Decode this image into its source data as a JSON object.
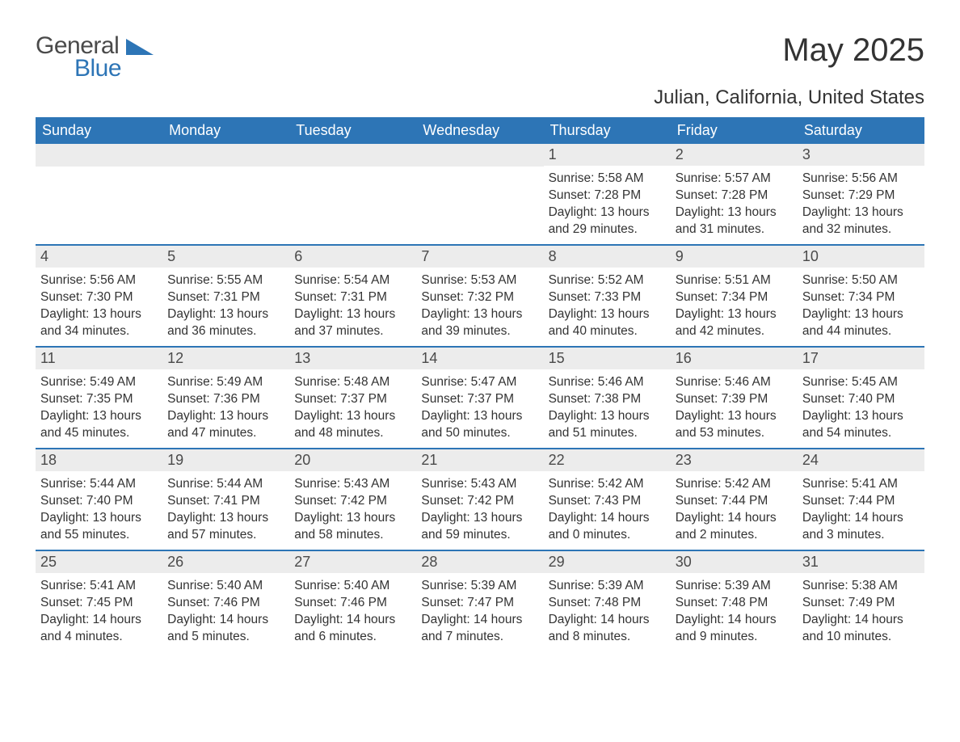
{
  "logo": {
    "word1": "General",
    "word2": "Blue"
  },
  "title": "May 2025",
  "location": "Julian, California, United States",
  "colors": {
    "header_bg": "#2d75b6",
    "header_text": "#ffffff",
    "daynum_bg": "#ececec",
    "body_text": "#333333",
    "logo_gray": "#4a4a4a",
    "logo_blue": "#2d75b6",
    "page_bg": "#ffffff"
  },
  "weekdays": [
    "Sunday",
    "Monday",
    "Tuesday",
    "Wednesday",
    "Thursday",
    "Friday",
    "Saturday"
  ],
  "weeks": [
    [
      null,
      null,
      null,
      null,
      {
        "n": "1",
        "sr": "Sunrise: 5:58 AM",
        "ss": "Sunset: 7:28 PM",
        "dl": "Daylight: 13 hours and 29 minutes."
      },
      {
        "n": "2",
        "sr": "Sunrise: 5:57 AM",
        "ss": "Sunset: 7:28 PM",
        "dl": "Daylight: 13 hours and 31 minutes."
      },
      {
        "n": "3",
        "sr": "Sunrise: 5:56 AM",
        "ss": "Sunset: 7:29 PM",
        "dl": "Daylight: 13 hours and 32 minutes."
      }
    ],
    [
      {
        "n": "4",
        "sr": "Sunrise: 5:56 AM",
        "ss": "Sunset: 7:30 PM",
        "dl": "Daylight: 13 hours and 34 minutes."
      },
      {
        "n": "5",
        "sr": "Sunrise: 5:55 AM",
        "ss": "Sunset: 7:31 PM",
        "dl": "Daylight: 13 hours and 36 minutes."
      },
      {
        "n": "6",
        "sr": "Sunrise: 5:54 AM",
        "ss": "Sunset: 7:31 PM",
        "dl": "Daylight: 13 hours and 37 minutes."
      },
      {
        "n": "7",
        "sr": "Sunrise: 5:53 AM",
        "ss": "Sunset: 7:32 PM",
        "dl": "Daylight: 13 hours and 39 minutes."
      },
      {
        "n": "8",
        "sr": "Sunrise: 5:52 AM",
        "ss": "Sunset: 7:33 PM",
        "dl": "Daylight: 13 hours and 40 minutes."
      },
      {
        "n": "9",
        "sr": "Sunrise: 5:51 AM",
        "ss": "Sunset: 7:34 PM",
        "dl": "Daylight: 13 hours and 42 minutes."
      },
      {
        "n": "10",
        "sr": "Sunrise: 5:50 AM",
        "ss": "Sunset: 7:34 PM",
        "dl": "Daylight: 13 hours and 44 minutes."
      }
    ],
    [
      {
        "n": "11",
        "sr": "Sunrise: 5:49 AM",
        "ss": "Sunset: 7:35 PM",
        "dl": "Daylight: 13 hours and 45 minutes."
      },
      {
        "n": "12",
        "sr": "Sunrise: 5:49 AM",
        "ss": "Sunset: 7:36 PM",
        "dl": "Daylight: 13 hours and 47 minutes."
      },
      {
        "n": "13",
        "sr": "Sunrise: 5:48 AM",
        "ss": "Sunset: 7:37 PM",
        "dl": "Daylight: 13 hours and 48 minutes."
      },
      {
        "n": "14",
        "sr": "Sunrise: 5:47 AM",
        "ss": "Sunset: 7:37 PM",
        "dl": "Daylight: 13 hours and 50 minutes."
      },
      {
        "n": "15",
        "sr": "Sunrise: 5:46 AM",
        "ss": "Sunset: 7:38 PM",
        "dl": "Daylight: 13 hours and 51 minutes."
      },
      {
        "n": "16",
        "sr": "Sunrise: 5:46 AM",
        "ss": "Sunset: 7:39 PM",
        "dl": "Daylight: 13 hours and 53 minutes."
      },
      {
        "n": "17",
        "sr": "Sunrise: 5:45 AM",
        "ss": "Sunset: 7:40 PM",
        "dl": "Daylight: 13 hours and 54 minutes."
      }
    ],
    [
      {
        "n": "18",
        "sr": "Sunrise: 5:44 AM",
        "ss": "Sunset: 7:40 PM",
        "dl": "Daylight: 13 hours and 55 minutes."
      },
      {
        "n": "19",
        "sr": "Sunrise: 5:44 AM",
        "ss": "Sunset: 7:41 PM",
        "dl": "Daylight: 13 hours and 57 minutes."
      },
      {
        "n": "20",
        "sr": "Sunrise: 5:43 AM",
        "ss": "Sunset: 7:42 PM",
        "dl": "Daylight: 13 hours and 58 minutes."
      },
      {
        "n": "21",
        "sr": "Sunrise: 5:43 AM",
        "ss": "Sunset: 7:42 PM",
        "dl": "Daylight: 13 hours and 59 minutes."
      },
      {
        "n": "22",
        "sr": "Sunrise: 5:42 AM",
        "ss": "Sunset: 7:43 PM",
        "dl": "Daylight: 14 hours and 0 minutes."
      },
      {
        "n": "23",
        "sr": "Sunrise: 5:42 AM",
        "ss": "Sunset: 7:44 PM",
        "dl": "Daylight: 14 hours and 2 minutes."
      },
      {
        "n": "24",
        "sr": "Sunrise: 5:41 AM",
        "ss": "Sunset: 7:44 PM",
        "dl": "Daylight: 14 hours and 3 minutes."
      }
    ],
    [
      {
        "n": "25",
        "sr": "Sunrise: 5:41 AM",
        "ss": "Sunset: 7:45 PM",
        "dl": "Daylight: 14 hours and 4 minutes."
      },
      {
        "n": "26",
        "sr": "Sunrise: 5:40 AM",
        "ss": "Sunset: 7:46 PM",
        "dl": "Daylight: 14 hours and 5 minutes."
      },
      {
        "n": "27",
        "sr": "Sunrise: 5:40 AM",
        "ss": "Sunset: 7:46 PM",
        "dl": "Daylight: 14 hours and 6 minutes."
      },
      {
        "n": "28",
        "sr": "Sunrise: 5:39 AM",
        "ss": "Sunset: 7:47 PM",
        "dl": "Daylight: 14 hours and 7 minutes."
      },
      {
        "n": "29",
        "sr": "Sunrise: 5:39 AM",
        "ss": "Sunset: 7:48 PM",
        "dl": "Daylight: 14 hours and 8 minutes."
      },
      {
        "n": "30",
        "sr": "Sunrise: 5:39 AM",
        "ss": "Sunset: 7:48 PM",
        "dl": "Daylight: 14 hours and 9 minutes."
      },
      {
        "n": "31",
        "sr": "Sunrise: 5:38 AM",
        "ss": "Sunset: 7:49 PM",
        "dl": "Daylight: 14 hours and 10 minutes."
      }
    ]
  ]
}
